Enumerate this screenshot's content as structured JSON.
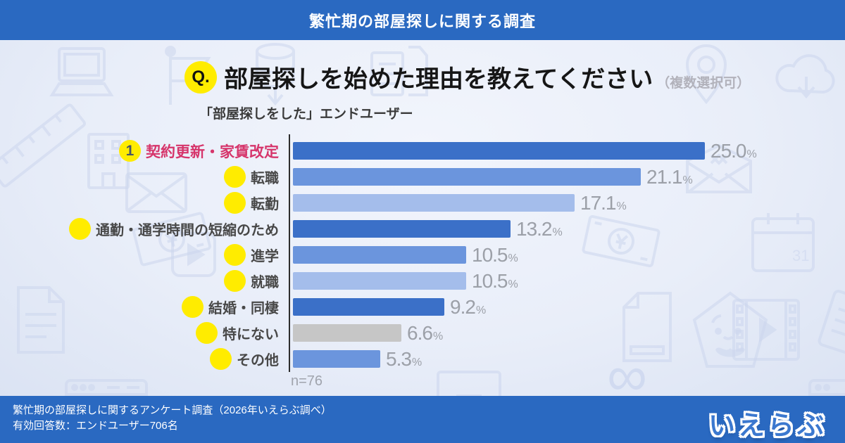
{
  "header": {
    "title": "繁忙期の部屋探しに関する調査"
  },
  "question": {
    "badge": "Q.",
    "title": "部屋探しを始めた理由を教えてください",
    "note": "（複数選択可）"
  },
  "subtitle": "「部屋探しをした」エンドユーザー",
  "chart_data": {
    "type": "bar",
    "orientation": "horizontal",
    "title": "部屋探しを始めた理由を教えてください（複数選択可）",
    "categories": [
      "契約更新・家賃改定",
      "転職",
      "転勤",
      "通勤・通学時間の短縮のため",
      "進学",
      "就職",
      "結婚・同棲",
      "特にない",
      "その他"
    ],
    "values": [
      25.0,
      21.1,
      17.1,
      13.2,
      10.5,
      10.5,
      9.2,
      6.6,
      5.3
    ],
    "value_labels": [
      "25.0",
      "21.1",
      "17.1",
      "13.2",
      "10.5",
      "10.5",
      "9.2",
      "6.6",
      "5.3"
    ],
    "unit": "%",
    "xlim": [
      0,
      26
    ],
    "grid": false,
    "legend": "none",
    "bar_colors": [
      "#3b70c8",
      "#6b95dd",
      "#a4bdeb",
      "#3b70c8",
      "#6b95dd",
      "#a4bdeb",
      "#3b70c8",
      "#c6c6c6",
      "#6b95dd"
    ],
    "highlight": {
      "index": 0,
      "rank_badge": "1",
      "label_color": "#d6356b",
      "badge_bg": "#ffec00",
      "badge_text_color": "#4a5564"
    },
    "n_label": "n=76"
  },
  "footer": {
    "line1": "繁忙期の部屋探しに関するアンケート調査（2026年いえらぶ調べ）",
    "line2": "有効回答数：エンドユーザー706名",
    "logo": "いえらぶ"
  },
  "colors": {
    "brand_blue": "#2a69c1",
    "logo_blue": "#3b78cf",
    "badge_yellow": "#ffec00",
    "bar_dark": "#3b70c8",
    "bar_medium": "#6b95dd",
    "bar_light": "#a4bdeb",
    "bar_gray": "#c6c6c6",
    "highlight_red": "#d6356b",
    "value_gray": "#9ca0a8"
  },
  "background_icons": [
    "laptop",
    "flag",
    "database-download",
    "documents",
    "location-pin",
    "cloud-download",
    "ruler",
    "building",
    "envelope",
    "banknote-yen",
    "play-video",
    "document",
    "browser-window",
    "mail-open",
    "calendar",
    "mascot-pentagon",
    "film-strip",
    "clipboard",
    "infinity",
    "printer"
  ]
}
